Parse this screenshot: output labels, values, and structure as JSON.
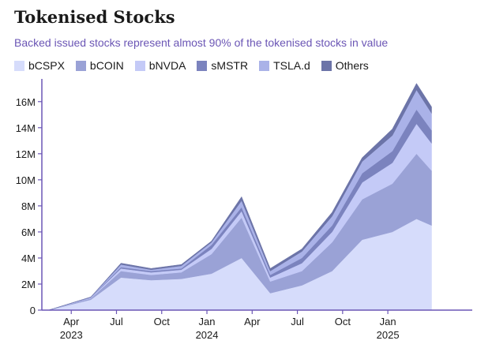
{
  "title": "Tokenised Stocks",
  "subtitle": "Backed issued stocks represent almost 90% of the tokenised stocks in value",
  "colors": {
    "bCSPX": "#d6dcfb",
    "bCOIN": "#9aa2d6",
    "bNVDA": "#c4caf7",
    "sMSTR": "#7b83be",
    "TSLA.d": "#aab2e8",
    "Others": "#6c74a8",
    "axis": "#6b56b5"
  },
  "chart_data": {
    "type": "area",
    "stacked": true,
    "title": "Tokenised Stocks",
    "subtitle": "Backed issued stocks represent almost 90% of the tokenised stocks in value",
    "xlabel": "",
    "ylabel": "",
    "ylim": [
      0,
      17500000
    ],
    "yticks": [
      0,
      2000000,
      4000000,
      6000000,
      8000000,
      10000000,
      12000000,
      14000000,
      16000000
    ],
    "ytick_labels": [
      "0",
      "2M",
      "4M",
      "6M",
      "8M",
      "10M",
      "12M",
      "14M",
      "16M"
    ],
    "xlim": [
      -1.95,
      26.6
    ],
    "xticks": [
      {
        "x": 0,
        "label": "Apr",
        "year": "2023"
      },
      {
        "x": 3,
        "label": "Jul",
        "year": ""
      },
      {
        "x": 6,
        "label": "Oct",
        "year": ""
      },
      {
        "x": 9,
        "label": "Jan",
        "year": "2024"
      },
      {
        "x": 12,
        "label": "Apr",
        "year": ""
      },
      {
        "x": 15,
        "label": "Jul",
        "year": ""
      },
      {
        "x": 18,
        "label": "Oct",
        "year": ""
      },
      {
        "x": 21,
        "label": "Jan",
        "year": "2025"
      }
    ],
    "x": [
      -1.5,
      1.3,
      3.3,
      5.3,
      7.3,
      9.3,
      11.3,
      13.2,
      15.3,
      17.3,
      19.3,
      21.3,
      22.9,
      23.9
    ],
    "series": [
      {
        "name": "bCSPX",
        "values": [
          0,
          800000,
          2500000,
          2300000,
          2400000,
          2800000,
          4000000,
          1300000,
          1900000,
          3000000,
          5400000,
          6000000,
          7000000,
          6500000
        ]
      },
      {
        "name": "bCOIN",
        "values": [
          0,
          100000,
          500000,
          400000,
          500000,
          1500000,
          3100000,
          900000,
          1100000,
          2200000,
          3100000,
          3700000,
          5000000,
          4200000
        ]
      },
      {
        "name": "bNVDA",
        "values": [
          0,
          50000,
          200000,
          200000,
          200000,
          400000,
          500000,
          300000,
          600000,
          800000,
          1300000,
          1600000,
          2300000,
          2100000
        ]
      },
      {
        "name": "sMSTR",
        "values": [
          0,
          30000,
          100000,
          100000,
          100000,
          300000,
          300000,
          200000,
          400000,
          500000,
          700000,
          900000,
          1100000,
          1000000
        ]
      },
      {
        "name": "TSLA.d",
        "values": [
          0,
          20000,
          200000,
          100000,
          200000,
          200000,
          500000,
          300000,
          500000,
          700000,
          900000,
          1200000,
          1500000,
          1300000
        ]
      },
      {
        "name": "Others",
        "values": [
          0,
          10000,
          100000,
          100000,
          100000,
          100000,
          300000,
          200000,
          200000,
          300000,
          300000,
          500000,
          500000,
          500000
        ]
      }
    ]
  }
}
